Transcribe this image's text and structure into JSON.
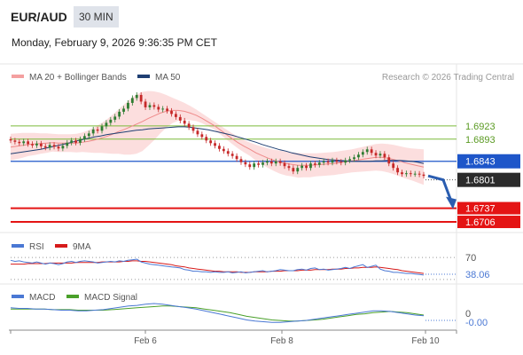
{
  "header": {
    "symbol": "EUR/AUD",
    "timeframe": "30 MIN",
    "datetime": "Monday, February 9, 2026 9:36:35 PM CET"
  },
  "legend": {
    "ma20_bb": "MA 20 + Bollinger Bands",
    "ma50": "MA 50",
    "copyright": "Research © 2026 Trading Central"
  },
  "colors": {
    "up": "#2e7d32",
    "down": "#c62828",
    "bb_fill": "#fbd3d3",
    "ma20": "#ef8a8a",
    "ma50": "#1f3f73",
    "pivot": "#1e56c9",
    "support": "#e41414",
    "resistance": "#7cba3a",
    "rsi": "#4a78d4",
    "rsi_ma": "#d61a1a",
    "macd": "#4a78d4",
    "macd_signal": "#4aa02a"
  },
  "chart_data": {
    "type": "line",
    "title": "EUR/AUD",
    "x_ticks": [
      "Feb 6",
      "Feb 8",
      "Feb 10"
    ],
    "close": [
      1.689,
      1.6887,
      1.6884,
      1.6888,
      1.6882,
      1.6879,
      1.6883,
      1.6877,
      1.6874,
      1.688,
      1.6876,
      1.6872,
      1.6878,
      1.6885,
      1.689,
      1.6885,
      1.6893,
      1.69,
      1.6906,
      1.6915,
      1.6912,
      1.6922,
      1.693,
      1.6937,
      1.6944,
      1.6955,
      1.6962,
      1.6975,
      1.6986,
      1.6993,
      1.6978,
      1.6965,
      1.697,
      1.6966,
      1.696,
      1.6962,
      1.6957,
      1.695,
      1.6943,
      1.6935,
      1.6928,
      1.692,
      1.6912,
      1.6904,
      1.6898,
      1.689,
      1.6884,
      1.6878,
      1.6871,
      1.6866,
      1.686,
      1.6855,
      1.6848,
      1.6841,
      1.6836,
      1.683,
      1.6838,
      1.6835,
      1.684,
      1.6843,
      1.6838,
      1.6843,
      1.6839,
      1.6832,
      1.6828,
      1.682,
      1.6828,
      1.6833,
      1.6828,
      1.6838,
      1.6835,
      1.684,
      1.6843,
      1.684,
      1.6845,
      1.6842,
      1.684,
      1.6845,
      1.6848,
      1.6852,
      1.6858,
      1.6864,
      1.687,
      1.6862,
      1.6856,
      1.686,
      1.6852,
      1.6838,
      1.6828,
      1.6818,
      1.6814,
      1.6816,
      1.6814,
      1.6815,
      1.6813,
      1.681
    ],
    "ma20": [
      1.6875,
      1.6877,
      1.6879,
      1.6881,
      1.6882,
      1.6883,
      1.6884,
      1.6885,
      1.6884,
      1.6884,
      1.6884,
      1.6884,
      1.6886,
      1.6888,
      1.6891,
      1.6895,
      1.6899,
      1.6904,
      1.691,
      1.6915,
      1.6921,
      1.6927,
      1.6933,
      1.694,
      1.6946,
      1.6952,
      1.6956,
      1.6958,
      1.6958,
      1.6956,
      1.6952,
      1.6947,
      1.694,
      1.6932,
      1.6924,
      1.6914,
      1.6904,
      1.6894,
      1.6885,
      1.6877,
      1.687,
      1.6862,
      1.6856,
      1.685,
      1.6845,
      1.6841,
      1.6838,
      1.6836,
      1.6834,
      1.6834,
      1.6834,
      1.6835,
      1.6836,
      1.6837,
      1.6838,
      1.684,
      1.6842,
      1.6844,
      1.6846,
      1.6848,
      1.685,
      1.6852,
      1.6852,
      1.685,
      1.6847,
      1.6843,
      1.6839,
      1.6836,
      1.6833,
      1.683
    ],
    "ma50": [
      1.686,
      1.6862,
      1.6864,
      1.6866,
      1.6868,
      1.687,
      1.6873,
      1.6876,
      1.6879,
      1.6882,
      1.6885,
      1.6889,
      1.6892,
      1.6895,
      1.6898,
      1.69,
      1.6903,
      1.6905,
      1.6907,
      1.6909,
      1.6911,
      1.6913,
      1.6914,
      1.6916,
      1.6917,
      1.6918,
      1.6919,
      1.692,
      1.6921,
      1.6921,
      1.692,
      1.6918,
      1.6916,
      1.6914,
      1.6911,
      1.6908,
      1.6905,
      1.6902,
      1.6898,
      1.6894,
      1.689,
      1.6886,
      1.6881,
      1.6877,
      1.6873,
      1.6869,
      1.6866,
      1.6862,
      1.6859,
      1.6856,
      1.6853,
      1.6851,
      1.6849,
      1.6847,
      1.6846,
      1.6845,
      1.6844,
      1.6843,
      1.6843,
      1.6843,
      1.6843,
      1.6844,
      1.6844,
      1.6845,
      1.6845,
      1.6845,
      1.6844,
      1.6843,
      1.6841,
      1.6838
    ],
    "bb_upper": [
      1.6905,
      1.6906,
      1.6907,
      1.6907,
      1.6907,
      1.6906,
      1.6906,
      1.6905,
      1.6904,
      1.6904,
      1.6904,
      1.6905,
      1.6908,
      1.6913,
      1.692,
      1.6928,
      1.6937,
      1.6948,
      1.696,
      1.6972,
      1.6984,
      1.6994,
      1.7,
      1.7002,
      1.7001,
      1.6998,
      1.6993,
      1.6987,
      1.6981,
      1.6975,
      1.6968,
      1.696,
      1.6951,
      1.6942,
      1.6933,
      1.6924,
      1.6915,
      1.6906,
      1.6898,
      1.6891,
      1.6885,
      1.688,
      1.6876,
      1.6872,
      1.6869,
      1.6867,
      1.6865,
      1.6863,
      1.6862,
      1.6861,
      1.6861,
      1.6861,
      1.6862,
      1.6863,
      1.6864,
      1.6866,
      1.6868,
      1.687,
      1.6873,
      1.6876,
      1.6879,
      1.6882,
      1.6883,
      1.6882,
      1.688,
      1.6877,
      1.6874,
      1.6872,
      1.6871,
      1.687
    ],
    "bb_lower": [
      1.6845,
      1.6848,
      1.6851,
      1.6855,
      1.6857,
      1.686,
      1.6862,
      1.6865,
      1.6864,
      1.6864,
      1.6864,
      1.6863,
      1.6864,
      1.6863,
      1.6862,
      1.6862,
      1.6861,
      1.686,
      1.686,
      1.6858,
      1.6858,
      1.686,
      1.6866,
      1.6878,
      1.6891,
      1.6906,
      1.6919,
      1.6929,
      1.6935,
      1.6937,
      1.6936,
      1.6934,
      1.6929,
      1.6922,
      1.6915,
      1.6904,
      1.6893,
      1.6882,
      1.6872,
      1.6863,
      1.6855,
      1.6844,
      1.6836,
      1.6828,
      1.6821,
      1.6815,
      1.6811,
      1.6809,
      1.6806,
      1.6807,
      1.6807,
      1.6809,
      1.681,
      1.6811,
      1.6812,
      1.6814,
      1.6816,
      1.6818,
      1.6819,
      1.682,
      1.6821,
      1.6822,
      1.6821,
      1.6818,
      1.6814,
      1.6809,
      1.6804,
      1.68,
      1.6795,
      1.679
    ],
    "levels": [
      {
        "value": 1.6923,
        "label": "1.6923",
        "kind": "resistance"
      },
      {
        "value": 1.6893,
        "label": "1.6893",
        "kind": "resistance"
      },
      {
        "value": 1.6843,
        "label": "1.6843",
        "kind": "pivot"
      },
      {
        "value": 1.6801,
        "label": "1.6801",
        "kind": "last"
      },
      {
        "value": 1.6737,
        "label": "1.6737",
        "kind": "support"
      },
      {
        "value": 1.6706,
        "label": "1.6706",
        "kind": "support"
      }
    ],
    "forecast": [
      [
        1.681,
        1.6801
      ],
      [
        1.6801,
        1.6737
      ]
    ],
    "ylim": [
      1.669,
      1.7015
    ],
    "rsi": {
      "legend": [
        "RSI",
        "9MA"
      ],
      "level_label": "70",
      "value_label": "38.06",
      "ylim": [
        25,
        80
      ],
      "values": [
        65,
        63,
        64,
        62,
        61,
        60,
        62,
        60,
        58,
        60,
        59,
        57,
        59,
        62,
        63,
        61,
        63,
        64,
        63,
        62,
        60,
        61,
        62,
        63,
        62,
        64,
        63,
        65,
        66,
        67,
        62,
        60,
        58,
        57,
        56,
        55,
        54,
        53,
        52,
        51,
        48,
        47,
        45,
        45,
        44,
        44,
        43,
        44,
        43,
        43,
        44,
        42,
        43,
        44,
        42,
        43,
        44,
        45,
        46,
        44,
        45,
        46,
        48,
        47,
        46,
        46,
        48,
        49,
        47,
        50,
        51,
        48,
        49,
        47,
        48,
        49,
        50,
        52,
        50,
        53,
        55,
        57,
        52,
        54,
        56,
        49,
        46,
        45,
        43,
        43,
        42,
        41,
        41,
        40,
        39,
        38.06
      ],
      "ma": [
        58,
        58,
        58,
        58,
        59,
        59,
        59,
        59,
        59,
        60,
        60,
        60,
        60,
        60,
        60,
        61,
        61,
        61,
        61,
        61,
        61,
        62,
        62,
        62,
        62,
        62,
        63,
        63,
        64,
        64,
        63,
        63,
        62,
        61,
        60,
        59,
        58,
        57,
        55,
        54,
        53,
        51,
        50,
        49,
        48,
        47,
        46,
        45,
        45,
        44,
        44,
        44,
        44,
        43,
        43,
        43,
        44,
        44,
        44,
        44,
        45,
        45,
        45,
        46,
        46,
        46,
        46,
        47,
        47,
        47,
        48,
        48,
        48,
        48,
        49,
        49,
        49,
        50,
        50,
        51,
        51,
        52,
        52,
        52,
        53,
        52,
        51,
        50,
        49,
        48,
        46,
        45,
        44,
        43,
        42,
        41
      ]
    },
    "macd": {
      "legend": [
        "MACD",
        "MACD Signal"
      ],
      "zero_label": "0",
      "value_label": "-0.00",
      "ylim": [
        -0.0022,
        0.0022
      ],
      "values": [
        0.0012,
        0.0011,
        0.0011,
        0.001,
        0.001,
        0.0009,
        0.0008,
        0.0008,
        0.0007,
        0.0007,
        0.0008,
        0.0009,
        0.0011,
        0.0013,
        0.0015,
        0.0016,
        0.0018,
        0.0019,
        0.0018,
        0.0016,
        0.0014,
        0.0012,
        0.001,
        0.0007,
        0.0004,
        0.0001,
        -0.0002,
        -0.0005,
        -0.0008,
        -0.001,
        -0.0011,
        -0.0012,
        -0.0012,
        -0.0011,
        -0.001,
        -0.0009,
        -0.0007,
        -0.0005,
        -0.0003,
        -0.0001,
        0.0001,
        0.0003,
        0.0005,
        0.0007,
        0.0007,
        0.0006,
        0.0004,
        0.0002,
        0.0,
        -0.0001
      ],
      "signal": [
        0.001,
        0.001,
        0.001,
        0.001,
        0.001,
        0.0009,
        0.0009,
        0.0009,
        0.0008,
        0.0008,
        0.0008,
        0.0008,
        0.0009,
        0.001,
        0.0011,
        0.0012,
        0.0013,
        0.0014,
        0.0015,
        0.0015,
        0.0014,
        0.0013,
        0.0012,
        0.001,
        0.0008,
        0.0006,
        0.0004,
        0.0001,
        -0.0002,
        -0.0004,
        -0.0006,
        -0.0008,
        -0.0009,
        -0.001,
        -0.001,
        -0.0009,
        -0.0008,
        -0.0007,
        -0.0005,
        -0.0003,
        -0.0001,
        0.0001,
        0.0002,
        0.0004,
        0.0005,
        0.0006,
        0.0005,
        0.0004,
        0.0002,
        0.0
      ]
    }
  }
}
